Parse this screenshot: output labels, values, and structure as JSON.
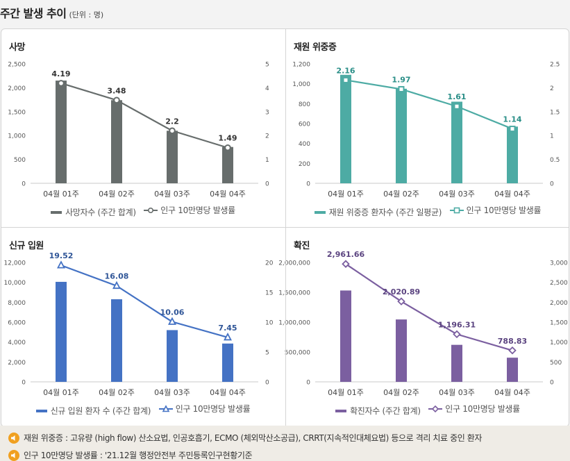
{
  "header": {
    "title": "주간 발생 추이",
    "unit": "(단위 : 명)"
  },
  "charts": [
    {
      "id": "deaths",
      "title": "사망",
      "color": "#676d6c",
      "line_color": "#676d6c",
      "marker": "circle",
      "categories": [
        "04월 01주",
        "04월 02주",
        "04월 03주",
        "04월 04주"
      ],
      "bar_values": [
        2150,
        1740,
        1100,
        760
      ],
      "line_values": [
        4.19,
        3.48,
        2.2,
        1.49
      ],
      "line_labels": [
        "4.19",
        "3.48",
        "2.2",
        "1.49"
      ],
      "left_axis": {
        "min": 0,
        "max": 2500,
        "ticks": [
          "0",
          "500",
          "1,000",
          "1,500",
          "2,000",
          "2,500"
        ]
      },
      "right_axis": {
        "min": 0,
        "max": 5,
        "ticks": [
          "0",
          "1",
          "2",
          "3",
          "4",
          "5"
        ]
      },
      "label_color": "#333333",
      "legend_bar": "사망자수 (주간 합계)",
      "legend_line": "인구 10만명당 발생률"
    },
    {
      "id": "critical",
      "title": "재원 위중증",
      "color": "#4daba4",
      "line_color": "#4daba4",
      "marker": "square",
      "categories": [
        "04월 01주",
        "04월 02주",
        "04월 03주",
        "04월 04주"
      ],
      "bar_values": [
        1090,
        950,
        820,
        570
      ],
      "line_values": [
        2.16,
        1.97,
        1.61,
        1.14
      ],
      "line_labels": [
        "2.16",
        "1.97",
        "1.61",
        "1.14"
      ],
      "left_axis": {
        "min": 0,
        "max": 1200,
        "ticks": [
          "0",
          "200",
          "400",
          "600",
          "800",
          "1,000",
          "1,200"
        ]
      },
      "right_axis": {
        "min": 0,
        "max": 2.5,
        "ticks": [
          "0",
          "0.5",
          "1",
          "1.5",
          "2",
          "2.5"
        ]
      },
      "label_color": "#2b8f88",
      "legend_bar": "재원 위중증 환자수 (주간 일평균)",
      "legend_line": "인구 10만명당 발생률"
    },
    {
      "id": "admissions",
      "title": "신규 입원",
      "color": "#4472c4",
      "line_color": "#4472c4",
      "marker": "triangle",
      "categories": [
        "04월 01주",
        "04월 02주",
        "04월 03주",
        "04월 04주"
      ],
      "bar_values": [
        10050,
        8300,
        5200,
        3850
      ],
      "line_values": [
        19.52,
        16.08,
        10.06,
        7.45
      ],
      "line_labels": [
        "19.52",
        "16.08",
        "10.06",
        "7.45"
      ],
      "left_axis": {
        "min": 0,
        "max": 12000,
        "ticks": [
          "0",
          "2,000",
          "4,000",
          "6,000",
          "8,000",
          "10,000",
          "12,000"
        ]
      },
      "right_axis": {
        "min": 0,
        "max": 20,
        "ticks": [
          "0",
          "5",
          "10",
          "15",
          "20"
        ]
      },
      "label_color": "#2f5597",
      "legend_bar": "신규 입원 환자 수 (주간 합계)",
      "legend_line": "인구 10만명당 발생률"
    },
    {
      "id": "confirmed",
      "title": "확진",
      "color": "#7b5fa0",
      "line_color": "#7b5fa0",
      "marker": "diamond",
      "categories": [
        "04월 01주",
        "04월 02주",
        "04월 03주",
        "04월 04주"
      ],
      "bar_values": [
        1530000,
        1045000,
        620000,
        405000
      ],
      "line_values": [
        2961.66,
        2020.89,
        1196.31,
        788.83
      ],
      "line_labels": [
        "2,961.66",
        "2,020.89",
        "1,196.31",
        "788.83"
      ],
      "left_axis": {
        "min": 0,
        "max": 2000000,
        "ticks": [
          "0",
          "500,000",
          "1,000,000",
          "1,500,000",
          "2,000,000"
        ]
      },
      "right_axis": {
        "min": 0,
        "max": 3000,
        "ticks": [
          "0",
          "500",
          "1,000",
          "1,500",
          "2,000",
          "2,500",
          "3,000"
        ]
      },
      "label_color": "#5b4480",
      "legend_bar": "확진자수 (주간 합계)",
      "legend_line": "인구 10만명당 발생률"
    }
  ],
  "notes": [
    "재원 위중증 : 고유량 (high flow) 산소요법, 인공호흡기, ECMO (체외막산소공급), CRRT(지속적인대체요법) 등으로 격리 치료 중인 환자",
    "인구 10만명당 발생률 : '21.12월 행정안전부 주민등록인구현황기준"
  ]
}
